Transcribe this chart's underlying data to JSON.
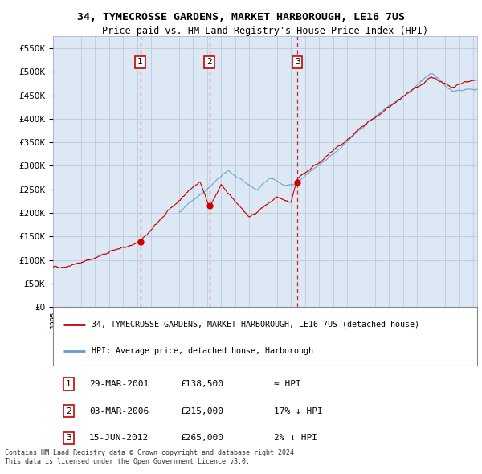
{
  "title": "34, TYMECROSSE GARDENS, MARKET HARBOROUGH, LE16 7US",
  "subtitle": "Price paid vs. HM Land Registry's House Price Index (HPI)",
  "legend_label1": "34, TYMECROSSE GARDENS, MARKET HARBOROUGH, LE16 7US (detached house)",
  "legend_label2": "HPI: Average price, detached house, Harborough",
  "footer1": "Contains HM Land Registry data © Crown copyright and database right 2024.",
  "footer2": "This data is licensed under the Open Government Licence v3.0.",
  "sale_points": [
    {
      "label": "1",
      "date": "29-MAR-2001",
      "price": 138500,
      "hpi_note": "≈ HPI",
      "x_year": 2001.23
    },
    {
      "label": "2",
      "date": "03-MAR-2006",
      "price": 215000,
      "hpi_note": "17% ↓ HPI",
      "x_year": 2006.17
    },
    {
      "label": "3",
      "date": "15-JUN-2012",
      "price": 265000,
      "hpi_note": "2% ↓ HPI",
      "x_year": 2012.46
    }
  ],
  "ylim": [
    0,
    575000
  ],
  "xlim_start": 1995.0,
  "xlim_end": 2025.3,
  "hpi_color": "#6699cc",
  "price_color": "#cc0000",
  "bg_color": "#dce9f5",
  "grid_color": "#b0b8d0",
  "vline_color": "#cc0000",
  "fig_width": 6.0,
  "fig_height": 5.9
}
